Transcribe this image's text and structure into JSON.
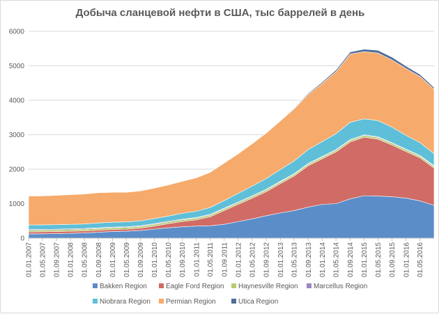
{
  "chart_data": {
    "type": "area",
    "stacked": true,
    "title": "Добыча сланцевой нефти в США, тыс баррелей в день",
    "xlabel": "",
    "ylabel": "",
    "ylim": [
      0,
      6000
    ],
    "yticks": [
      0,
      1000,
      2000,
      3000,
      4000,
      5000,
      6000
    ],
    "grid": true,
    "legend": "bottom",
    "xticks": [
      "01.01.2007",
      "01.05.2007",
      "01.09.2007",
      "01.01.2008",
      "01.05.2008",
      "01.09.2008",
      "01.01.2009",
      "01.05.2009",
      "01.09.2009",
      "01.01.2010",
      "01.05.2010",
      "01.09.2010",
      "01.01.2011",
      "01.05.2011",
      "01.09.2011",
      "01.01.2012",
      "01.05.2012",
      "01.09.2012",
      "01.01.2013",
      "01.05.2013",
      "01.09.2013",
      "01.01.2014",
      "01.05.2014",
      "01.09.2014",
      "01.01.2015",
      "01.05.2015",
      "01.09.2015",
      "01.01.2016",
      "01.05.2016"
    ],
    "x": [
      "01.01.2007",
      "01.05.2007",
      "01.09.2007",
      "01.01.2008",
      "01.05.2008",
      "01.09.2008",
      "01.01.2009",
      "01.05.2009",
      "01.09.2009",
      "01.01.2010",
      "01.05.2010",
      "01.09.2010",
      "01.01.2011",
      "01.05.2011",
      "01.09.2011",
      "01.01.2012",
      "01.05.2012",
      "01.09.2012",
      "01.01.2013",
      "01.05.2013",
      "01.09.2013",
      "01.01.2014",
      "01.05.2014",
      "01.09.2014",
      "01.01.2015",
      "01.05.2015",
      "01.09.2015",
      "01.01.2016",
      "01.05.2016",
      "01.09.2016"
    ],
    "series": [
      {
        "name": "Bakken Region",
        "color": "#5b8dc9",
        "values": [
          120,
          125,
          130,
          140,
          150,
          170,
          190,
          200,
          220,
          260,
          300,
          330,
          350,
          360,
          400,
          480,
          560,
          650,
          730,
          800,
          900,
          980,
          1000,
          1140,
          1230,
          1220,
          1200,
          1160,
          1080,
          950
        ]
      },
      {
        "name": "Eagle Ford Region",
        "color": "#d06b66",
        "values": [
          60,
          60,
          60,
          60,
          60,
          60,
          60,
          60,
          70,
          90,
          120,
          150,
          180,
          260,
          400,
          500,
          600,
          700,
          850,
          1000,
          1200,
          1320,
          1500,
          1650,
          1700,
          1650,
          1500,
          1350,
          1250,
          1080
        ]
      },
      {
        "name": "Haynesville Region",
        "color": "#b5cc6e",
        "values": [
          50,
          50,
          50,
          50,
          50,
          50,
          50,
          50,
          50,
          50,
          50,
          50,
          50,
          50,
          50,
          50,
          50,
          50,
          50,
          50,
          50,
          50,
          50,
          50,
          50,
          50,
          50,
          50,
          50,
          50
        ]
      },
      {
        "name": "Marcellus Region",
        "color": "#9a87c0",
        "values": [
          20,
          20,
          20,
          20,
          20,
          20,
          20,
          20,
          20,
          20,
          20,
          20,
          20,
          20,
          20,
          20,
          20,
          20,
          20,
          20,
          20,
          20,
          20,
          20,
          20,
          20,
          20,
          20,
          20,
          20
        ]
      },
      {
        "name": "Niobrara Region",
        "color": "#5fbfd8",
        "values": [
          130,
          130,
          130,
          130,
          130,
          140,
          140,
          140,
          140,
          150,
          150,
          170,
          180,
          200,
          220,
          250,
          280,
          310,
          340,
          370,
          400,
          430,
          460,
          500,
          460,
          470,
          450,
          400,
          370,
          350
        ]
      },
      {
        "name": "Permian Region",
        "color": "#f6aa6b",
        "values": [
          840,
          840,
          850,
          860,
          870,
          880,
          870,
          860,
          870,
          880,
          900,
          930,
          970,
          1020,
          1090,
          1150,
          1230,
          1320,
          1410,
          1510,
          1600,
          1690,
          1800,
          1980,
          1950,
          1960,
          1950,
          1940,
          1920,
          1870
        ]
      },
      {
        "name": "Utica Region",
        "color": "#4f6d98",
        "values": [
          0,
          0,
          0,
          0,
          0,
          0,
          0,
          0,
          0,
          0,
          0,
          0,
          0,
          0,
          0,
          0,
          5,
          10,
          15,
          20,
          30,
          40,
          50,
          60,
          70,
          80,
          80,
          70,
          60,
          50
        ]
      }
    ]
  }
}
